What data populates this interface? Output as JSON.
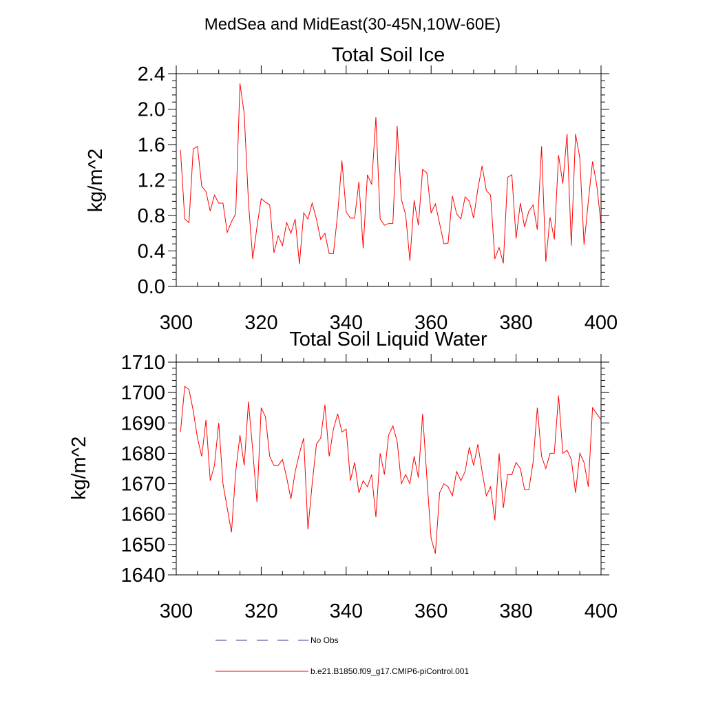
{
  "suptitle": "MedSea and MidEast(30-45N,10W-60E)",
  "colors": {
    "model": "#ff0000",
    "obs": "#3a3a8c",
    "axis": "#000000"
  },
  "legend": {
    "entries": [
      {
        "label": "No Obs",
        "style": "dashed"
      },
      {
        "label": "b.e21.B1850.f09_g17.CMIP6-piControl.001",
        "style": "solid"
      }
    ]
  },
  "chart_data": [
    {
      "type": "line",
      "title": "Total Soil Ice",
      "ylabel": "kg/m^2",
      "xlabel": "",
      "xlim": [
        300,
        400
      ],
      "ylim": [
        0.0,
        2.4
      ],
      "xticks": [
        "300",
        "320",
        "340",
        "360",
        "380",
        "400"
      ],
      "yticks": [
        "0.0",
        "0.4",
        "0.8",
        "1.2",
        "1.6",
        "2.0",
        "2.4"
      ],
      "x_start": 301,
      "series": [
        {
          "name": "b.e21.B1850.f09_g17.CMIP6-piControl.001",
          "values": [
            1.54,
            0.76,
            0.72,
            1.55,
            1.58,
            1.13,
            1.07,
            0.85,
            1.03,
            0.94,
            0.94,
            0.61,
            0.73,
            0.82,
            2.29,
            1.95,
            0.95,
            0.31,
            0.67,
            0.99,
            0.95,
            0.92,
            0.38,
            0.57,
            0.46,
            0.72,
            0.6,
            0.76,
            0.25,
            0.83,
            0.76,
            0.94,
            0.76,
            0.53,
            0.6,
            0.37,
            0.37,
            0.82,
            1.42,
            0.84,
            0.77,
            0.77,
            1.18,
            0.43,
            1.26,
            1.15,
            1.91,
            0.76,
            0.69,
            0.71,
            0.71,
            1.81,
            0.98,
            0.81,
            0.29,
            0.97,
            0.69,
            1.32,
            1.28,
            0.83,
            0.93,
            0.71,
            0.48,
            0.49,
            1.02,
            0.82,
            0.76,
            1.01,
            0.96,
            0.77,
            1.1,
            1.36,
            1.08,
            1.03,
            0.31,
            0.44,
            0.26,
            1.23,
            1.26,
            0.54,
            0.94,
            0.67,
            0.85,
            0.92,
            0.64,
            1.58,
            0.28,
            0.78,
            0.53,
            1.48,
            1.16,
            1.72,
            0.46,
            1.72,
            1.45,
            0.47,
            0.96,
            1.41,
            1.14,
            0.7
          ]
        }
      ]
    },
    {
      "type": "line",
      "title": "Total Soil Liquid Water",
      "ylabel": "kg/m^2",
      "xlabel": "",
      "xlim": [
        300,
        400
      ],
      "ylim": [
        1640,
        1710
      ],
      "xticks": [
        "300",
        "320",
        "340",
        "360",
        "380",
        "400"
      ],
      "yticks": [
        "1640",
        "1650",
        "1660",
        "1670",
        "1680",
        "1690",
        "1700",
        "1710"
      ],
      "x_start": 301,
      "series": [
        {
          "name": "b.e21.B1850.f09_g17.CMIP6-piControl.001",
          "values": [
            1687,
            1702,
            1701,
            1694,
            1685,
            1679,
            1691,
            1671,
            1676,
            1690,
            1670,
            1662,
            1654,
            1674,
            1686,
            1676,
            1697,
            1681,
            1664,
            1695,
            1692,
            1679,
            1676,
            1676,
            1678,
            1672,
            1665,
            1674,
            1680,
            1685,
            1655,
            1670,
            1683,
            1685,
            1696,
            1679,
            1688,
            1693,
            1687,
            1688,
            1671,
            1677,
            1667,
            1671,
            1669,
            1673,
            1659,
            1680,
            1673,
            1686,
            1689,
            1684,
            1670,
            1673,
            1670,
            1679,
            1672,
            1693,
            1672,
            1652,
            1647,
            1667,
            1670,
            1669,
            1666,
            1674,
            1671,
            1674,
            1682,
            1676,
            1683,
            1674,
            1666,
            1669,
            1658,
            1680,
            1662,
            1673,
            1673,
            1677,
            1675,
            1668,
            1668,
            1677,
            1695,
            1679,
            1675,
            1680,
            1680,
            1699,
            1680,
            1681,
            1678,
            1667,
            1680,
            1677,
            1669,
            1695,
            1693,
            1691
          ]
        }
      ]
    }
  ]
}
